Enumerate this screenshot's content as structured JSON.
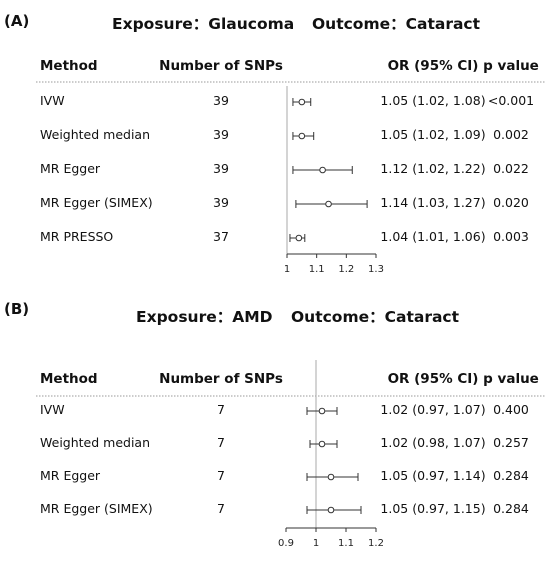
{
  "chart_data": [
    {
      "type": "forest",
      "panel_label": "(A)",
      "exposure": "Exposure：Glaucoma",
      "outcome": "Outcome：Cataract",
      "headers": [
        "Method",
        "Number of SNPs",
        "OR (95% CI)",
        "p value"
      ],
      "xlim": [
        1,
        1.3
      ],
      "xticks": [
        1,
        1.1,
        1.2,
        1.3
      ],
      "xtick_labels": [
        "1",
        "1.1",
        "1.2",
        "1.3"
      ],
      "reference_line": 1,
      "rows": [
        {
          "method": "IVW",
          "snps": "39",
          "or": 1.05,
          "lo": 1.02,
          "hi": 1.08,
          "or_text": "1.05 (1.02, 1.08)",
          "p": "<0.001"
        },
        {
          "method": "Weighted median",
          "snps": "39",
          "or": 1.05,
          "lo": 1.02,
          "hi": 1.09,
          "or_text": "1.05 (1.02, 1.09)",
          "p": "0.002"
        },
        {
          "method": "MR Egger",
          "snps": "39",
          "or": 1.12,
          "lo": 1.02,
          "hi": 1.22,
          "or_text": "1.12 (1.02, 1.22)",
          "p": "0.022"
        },
        {
          "method": "MR Egger (SIMEX)",
          "snps": "39",
          "or": 1.14,
          "lo": 1.03,
          "hi": 1.27,
          "or_text": "1.14 (1.03, 1.27)",
          "p": "0.020"
        },
        {
          "method": "MR PRESSO",
          "snps": "37",
          "or": 1.04,
          "lo": 1.01,
          "hi": 1.06,
          "or_text": "1.04 (1.01, 1.06)",
          "p": "0.003"
        }
      ]
    },
    {
      "type": "forest",
      "panel_label": "(B)",
      "exposure": "Exposure：AMD",
      "outcome": "Outcome：Cataract",
      "headers": [
        "Method",
        "Number of SNPs",
        "OR (95% CI)",
        "p value"
      ],
      "xlim": [
        0.9,
        1.2
      ],
      "xticks": [
        0.9,
        1,
        1.1,
        1.2
      ],
      "xtick_labels": [
        "0.9",
        "1",
        "1.1",
        "1.2"
      ],
      "reference_line": 1,
      "rows": [
        {
          "method": "IVW",
          "snps": "7",
          "or": 1.02,
          "lo": 0.97,
          "hi": 1.07,
          "or_text": "1.02 (0.97, 1.07)",
          "p": "0.400"
        },
        {
          "method": "Weighted median",
          "snps": "7",
          "or": 1.02,
          "lo": 0.98,
          "hi": 1.07,
          "or_text": "1.02 (0.98, 1.07)",
          "p": "0.257"
        },
        {
          "method": "MR Egger",
          "snps": "7",
          "or": 1.05,
          "lo": 0.97,
          "hi": 1.14,
          "or_text": "1.05 (0.97, 1.14)",
          "p": "0.284"
        },
        {
          "method": "MR Egger (SIMEX)",
          "snps": "7",
          "or": 1.05,
          "lo": 0.97,
          "hi": 1.15,
          "or_text": "1.05 (0.97, 1.15)",
          "p": "0.284"
        }
      ]
    }
  ],
  "colors": {
    "text": "#111111",
    "line": "#333333",
    "divider": "#9a9a9a"
  }
}
